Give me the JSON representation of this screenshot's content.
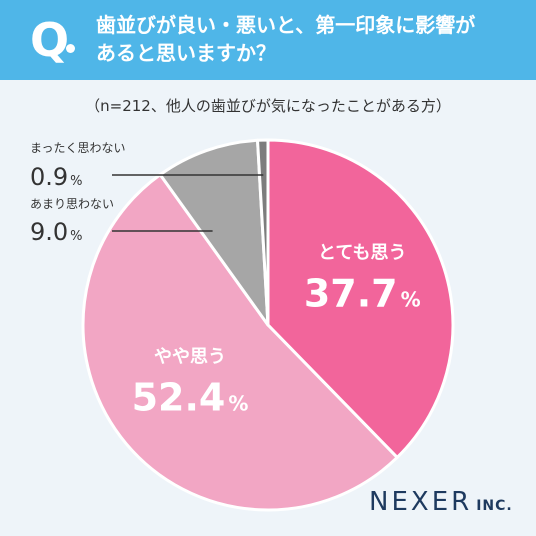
{
  "question": {
    "mark": "Q",
    "line1": "歯並びが良い・悪いと、第一印象に影響が",
    "line2": "あると思いますか？"
  },
  "subtitle": "（n=212、他人の歯並びが気になったことがある方）",
  "brand": {
    "name": "NEXER",
    "suffix": "INC."
  },
  "colors": {
    "header": "#4fb6e8",
    "background": "#eef4f9",
    "strong_yes": "#f2659b",
    "yes": "#f2a6c4",
    "not_really": "#a6a6a6",
    "not_at_all": "#7d7d7d"
  },
  "chart_data": {
    "type": "pie",
    "slices": [
      {
        "label": "とても思う",
        "value": 37.7,
        "value_text": "37.7",
        "unit": "%",
        "color": "#f2659b",
        "label_style": "inside"
      },
      {
        "label": "やや思う",
        "value": 52.4,
        "value_text": "52.4",
        "unit": "%",
        "color": "#f2a6c4",
        "label_style": "inside"
      },
      {
        "label": "あまり思わない",
        "value": 9.0,
        "value_text": "9.0",
        "unit": "%",
        "color": "#a6a6a6",
        "label_style": "callout"
      },
      {
        "label": "まったく思わない",
        "value": 0.9,
        "value_text": "0.9",
        "unit": "%",
        "color": "#7d7d7d",
        "label_style": "callout"
      }
    ],
    "start_angle": "12 o'clock",
    "direction": "clockwise"
  }
}
